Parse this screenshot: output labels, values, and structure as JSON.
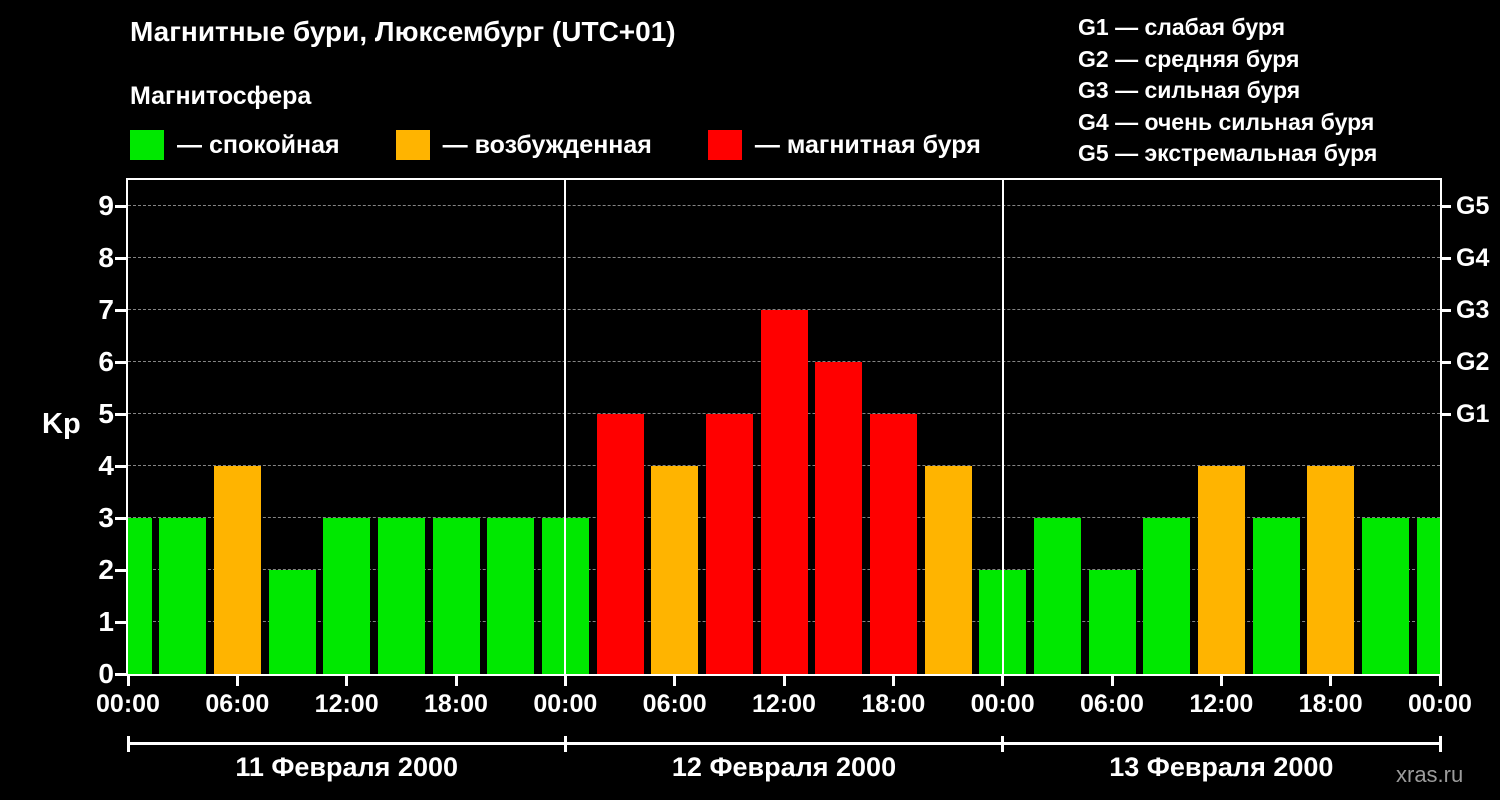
{
  "title": "Магнитные бури, Люксембург (UTC+01)",
  "subtitle": "Магнитосфера",
  "legend": [
    {
      "status": "quiet",
      "label": "— спокойная"
    },
    {
      "status": "excited",
      "label": "— возбужденная"
    },
    {
      "status": "storm",
      "label": "— магнитная буря"
    }
  ],
  "storm_scale": [
    "G1 — слабая буря",
    "G2 — средняя буря",
    "G3 — сильная буря",
    "G4 — очень сильная буря",
    "G5 — экстремальная буря"
  ],
  "watermark": "xras.ru",
  "chart_data": {
    "type": "bar",
    "title": "Магнитные бури, Люксембург (UTC+01)",
    "ylabel": "Kp",
    "xlabel": "",
    "ylim": [
      0,
      9.5
    ],
    "yticks": [
      0,
      1,
      2,
      3,
      4,
      5,
      6,
      7,
      8,
      9
    ],
    "grid": true,
    "x_hours_span": 72,
    "x_tick_step_hours": 6,
    "x_tick_labels": [
      "00:00",
      "06:00",
      "12:00",
      "18:00",
      "00:00",
      "06:00",
      "12:00",
      "18:00",
      "00:00",
      "06:00",
      "12:00",
      "18:00",
      "00:00"
    ],
    "day_labels": [
      "11 Февраля 2000",
      "12 Февраля 2000",
      "13 Февраля 2000"
    ],
    "day_separators_hours": [
      24,
      48
    ],
    "right_axis": [
      {
        "kp": 5,
        "label": "G1"
      },
      {
        "kp": 6,
        "label": "G2"
      },
      {
        "kp": 7,
        "label": "G3"
      },
      {
        "kp": 8,
        "label": "G4"
      },
      {
        "kp": 9,
        "label": "G5"
      }
    ],
    "colors": {
      "quiet": "#00e800",
      "excited": "#ffb400",
      "storm": "#ff0000"
    },
    "bars": [
      {
        "hour": 0,
        "kp": 3,
        "status": "quiet"
      },
      {
        "hour": 3,
        "kp": 3,
        "status": "quiet"
      },
      {
        "hour": 6,
        "kp": 4,
        "status": "excited"
      },
      {
        "hour": 9,
        "kp": 2,
        "status": "quiet"
      },
      {
        "hour": 12,
        "kp": 3,
        "status": "quiet"
      },
      {
        "hour": 15,
        "kp": 3,
        "status": "quiet"
      },
      {
        "hour": 18,
        "kp": 3,
        "status": "quiet"
      },
      {
        "hour": 21,
        "kp": 3,
        "status": "quiet"
      },
      {
        "hour": 24,
        "kp": 3,
        "status": "quiet"
      },
      {
        "hour": 27,
        "kp": 5,
        "status": "storm"
      },
      {
        "hour": 30,
        "kp": 4,
        "status": "excited"
      },
      {
        "hour": 33,
        "kp": 5,
        "status": "storm"
      },
      {
        "hour": 36,
        "kp": 7,
        "status": "storm"
      },
      {
        "hour": 39,
        "kp": 6,
        "status": "storm"
      },
      {
        "hour": 42,
        "kp": 5,
        "status": "storm"
      },
      {
        "hour": 45,
        "kp": 4,
        "status": "excited"
      },
      {
        "hour": 48,
        "kp": 2,
        "status": "quiet"
      },
      {
        "hour": 51,
        "kp": 3,
        "status": "quiet"
      },
      {
        "hour": 54,
        "kp": 2,
        "status": "quiet"
      },
      {
        "hour": 57,
        "kp": 3,
        "status": "quiet"
      },
      {
        "hour": 60,
        "kp": 4,
        "status": "excited"
      },
      {
        "hour": 63,
        "kp": 3,
        "status": "quiet"
      },
      {
        "hour": 66,
        "kp": 4,
        "status": "excited"
      },
      {
        "hour": 69,
        "kp": 3,
        "status": "quiet"
      },
      {
        "hour": 72,
        "kp": 3,
        "status": "quiet"
      }
    ]
  }
}
